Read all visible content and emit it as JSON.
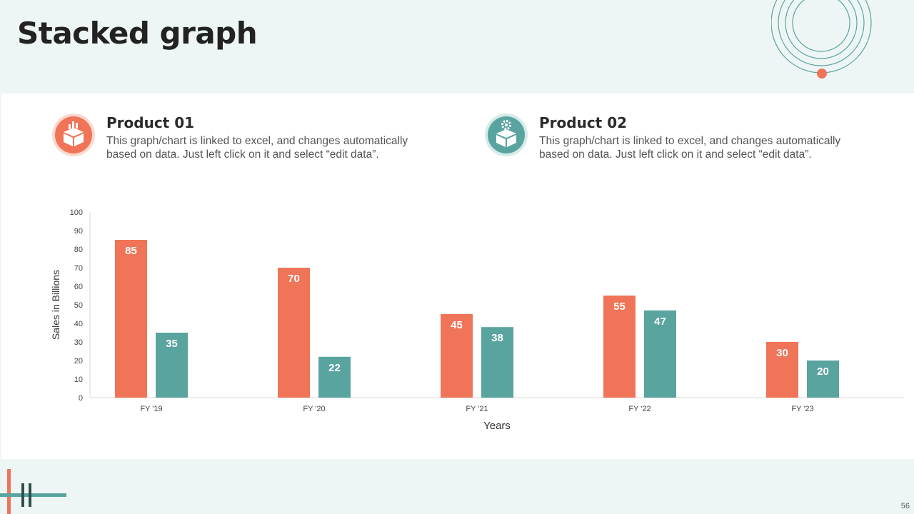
{
  "slide": {
    "title": "Stacked graph",
    "page_number": "56"
  },
  "products": [
    {
      "title": "Product 01",
      "description": "This graph/chart is linked to excel, and changes automatically based on data. Just left click on it and select “edit data”.",
      "icon": "box-chart-icon",
      "color": "#f07457"
    },
    {
      "title": "Product 02",
      "description": "This graph/chart is linked to excel, and changes automatically based on data. Just left click on it and select “edit data”.",
      "icon": "box-gear-icon",
      "color": "#5aa4a0"
    }
  ],
  "chart_data": {
    "type": "bar",
    "title": "",
    "xlabel": "Years",
    "ylabel": "Sales in Billions",
    "ylim": [
      0,
      100
    ],
    "yticks": [
      0,
      10,
      20,
      30,
      40,
      50,
      60,
      70,
      80,
      90,
      100
    ],
    "categories": [
      "FY '19",
      "FY '20",
      "FY '21",
      "FY '22",
      "FY '23"
    ],
    "series": [
      {
        "values": [
          85,
          70,
          45,
          55,
          30
        ],
        "color": "#f07457"
      },
      {
        "values": [
          35,
          22,
          38,
          47,
          20
        ],
        "color": "#5aa4a0"
      }
    ],
    "grid": false,
    "legend": "none",
    "data_labels": true
  }
}
